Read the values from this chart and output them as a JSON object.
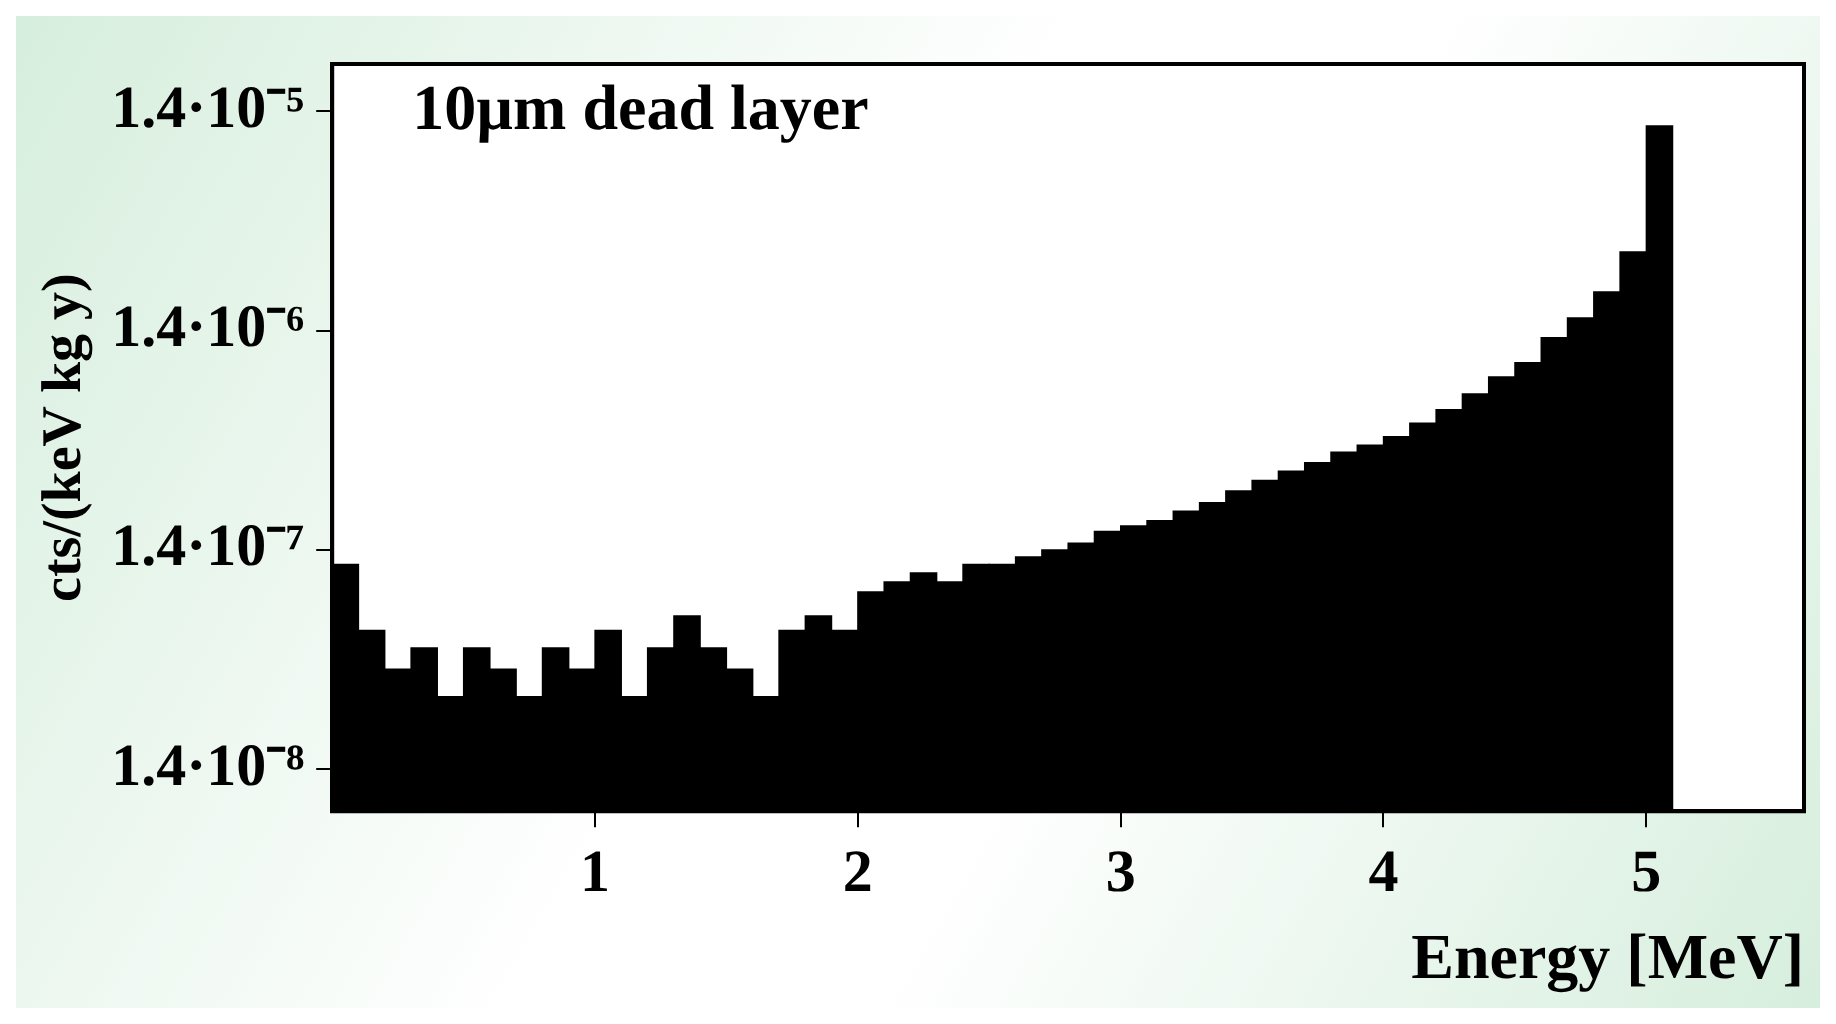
{
  "chart_data": {
    "type": "histogram",
    "xlabel": "Energy [MeV]",
    "ylabel": "cts/(keV kg y)",
    "annotations": [
      "10µm dead layer"
    ],
    "bins": [
      0,
      0.1,
      0.2,
      0.3,
      0.4,
      0.5,
      0.6,
      0.7,
      0.8,
      0.9,
      1.0,
      1.1,
      1.2,
      1.3,
      1.4,
      1.5,
      1.6,
      1.7,
      1.8,
      1.9,
      2.0,
      2.1,
      2.2,
      2.3,
      2.4,
      2.5,
      2.6,
      2.7,
      2.8,
      2.9,
      3.0,
      3.1,
      3.2,
      3.3,
      3.4,
      3.5,
      3.6,
      3.7,
      3.8,
      3.9,
      4.0,
      4.1,
      4.2,
      4.3,
      4.4,
      4.5,
      4.6,
      4.7,
      4.8,
      4.9,
      5.0,
      5.1,
      5.2,
      5.3,
      5.4,
      5.5,
      5.6
    ],
    "values": [
      1.2e-07,
      6e-08,
      4e-08,
      5e-08,
      3e-08,
      5e-08,
      4e-08,
      3e-08,
      5e-08,
      4e-08,
      6e-08,
      3e-08,
      5e-08,
      7e-08,
      5e-08,
      4e-08,
      3e-08,
      6e-08,
      7e-08,
      6e-08,
      9e-08,
      1e-07,
      1.1e-07,
      1e-07,
      1.2e-07,
      1.2e-07,
      1.3e-07,
      1.4e-07,
      1.5e-07,
      1.7e-07,
      1.8e-07,
      1.9e-07,
      2.1e-07,
      2.3e-07,
      2.6e-07,
      2.9e-07,
      3.2e-07,
      3.5e-07,
      3.9e-07,
      4.2e-07,
      4.6e-07,
      5.3e-07,
      6.1e-07,
      7.2e-07,
      8.6e-07,
      1e-06,
      1.3e-06,
      1.6e-06,
      2.1e-06,
      3.2e-06,
      1.2e-05,
      null,
      null,
      null,
      null,
      null
    ],
    "color": "#000000",
    "log": "y",
    "xlim": [
      0,
      5.6
    ],
    "ylim": [
      9e-09,
      2.3e-05
    ],
    "xticks": [
      1,
      2,
      3,
      4,
      5
    ],
    "yticks": [
      {
        "value": 1.4e-08,
        "label": "1.4·10⁻⁸"
      },
      {
        "value": 1.4e-07,
        "label": "1.4·10⁻⁷"
      },
      {
        "value": 1.4e-06,
        "label": "1.4·10⁻⁶"
      },
      {
        "value": 1.4e-05,
        "label": "1.4·10⁻⁵"
      }
    ],
    "grid": false,
    "legend": false
  }
}
